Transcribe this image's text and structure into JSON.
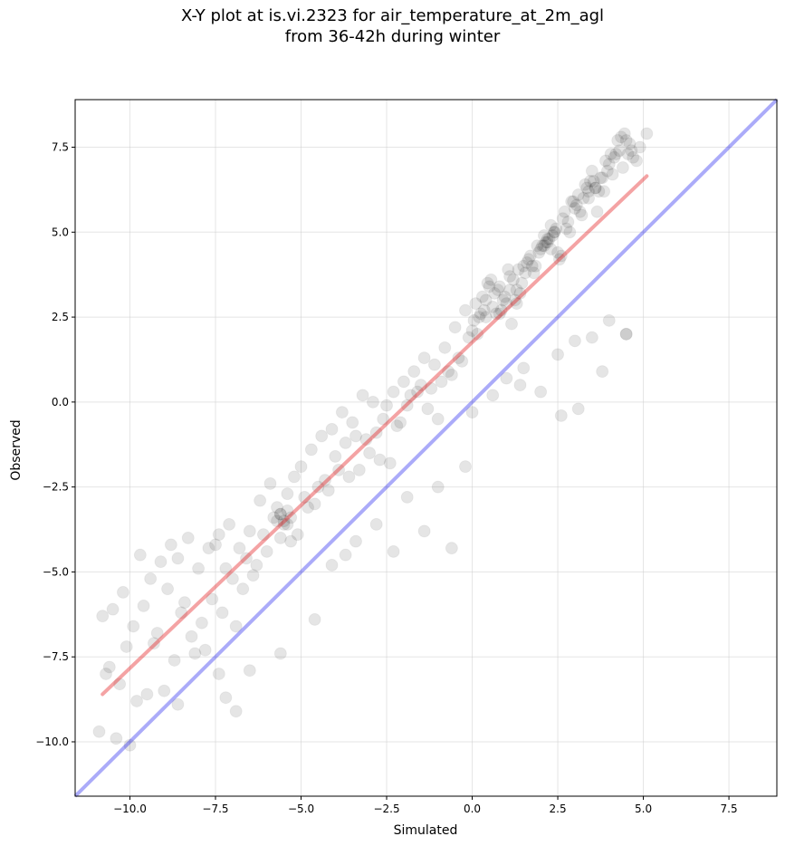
{
  "chart_data": {
    "type": "scatter",
    "title": "X-Y plot at is.vi.2323 for air_temperature_at_2m_agl",
    "subtitle": "from 36-42h during winter",
    "xlabel": "Simulated",
    "ylabel": "Observed",
    "xlim": [
      -11.6,
      8.9
    ],
    "ylim": [
      -11.6,
      8.9
    ],
    "xticks": [
      -10.0,
      -7.5,
      -5.0,
      -2.5,
      0.0,
      2.5,
      5.0,
      7.5
    ],
    "yticks": [
      -10.0,
      -7.5,
      -5.0,
      -2.5,
      0.0,
      2.5,
      5.0,
      7.5
    ],
    "xtick_labels": [
      "−10.0",
      "−7.5",
      "−5.0",
      "−2.5",
      "0.0",
      "2.5",
      "5.0",
      "7.5"
    ],
    "ytick_labels": [
      "−10.0",
      "−7.5",
      "−5.0",
      "−2.5",
      "0.0",
      "2.5",
      "5.0",
      "7.5"
    ],
    "grid": true,
    "colors": {
      "points": "#000000",
      "regression": "#e41a1c",
      "identity": "#0000ee"
    },
    "regression_line": {
      "x": [
        -10.8,
        5.1
      ],
      "y": [
        -8.6,
        6.65
      ]
    },
    "identity_line": {
      "x": [
        -11.6,
        8.9
      ],
      "y": [
        -11.6,
        8.9
      ]
    },
    "points": {
      "x": [
        -10.8,
        -10.5,
        -10.2,
        -10.6,
        -10.1,
        -9.9,
        -9.6,
        -9.4,
        -9.1,
        -8.8,
        -8.6,
        -8.3,
        -8.0,
        -7.7,
        -7.4,
        -7.1,
        -6.8,
        -6.5,
        -6.2,
        -5.9,
        -5.6,
        -5.4,
        -5.2,
        -5.0,
        -4.7,
        -4.4,
        -4.1,
        -3.8,
        -3.5,
        -3.2,
        -2.9,
        -2.6,
        -2.3,
        -2.0,
        -1.7,
        -1.4,
        -1.1,
        -0.8,
        -0.5,
        -0.2,
        0.1,
        0.3,
        0.5,
        0.7,
        0.9,
        1.1,
        1.3,
        1.5,
        1.7,
        1.9,
        2.1,
        2.3,
        2.5,
        2.7,
        2.9,
        3.1,
        3.3,
        3.5,
        3.7,
        3.9,
        4.1,
        4.3,
        4.5,
        4.7,
        4.9,
        5.1,
        -10.7,
        -10.3,
        -9.8,
        -9.3,
        -8.9,
        -8.5,
        -8.1,
        -7.6,
        -7.2,
        -6.7,
        -6.3,
        -5.8,
        -5.5,
        -5.3,
        -4.9,
        -4.5,
        -4.0,
        -3.6,
        -3.1,
        -2.7,
        -2.2,
        -1.8,
        -1.3,
        -0.9,
        -0.4,
        0.0,
        0.2,
        0.4,
        0.6,
        0.8,
        1.0,
        1.2,
        1.4,
        1.6,
        1.8,
        2.0,
        2.2,
        2.4,
        2.6,
        2.8,
        3.0,
        3.2,
        3.4,
        3.6,
        3.8,
        4.0,
        4.2,
        4.4,
        4.6,
        4.8,
        -10.9,
        -10.4,
        -10.0,
        -9.5,
        -9.0,
        -8.7,
        -8.2,
        -7.8,
        -7.3,
        -6.9,
        -6.4,
        -6.0,
        -5.7,
        -5.6,
        -5.1,
        -4.6,
        -4.2,
        -3.7,
        -3.3,
        -2.8,
        -2.4,
        -1.9,
        -1.5,
        -1.0,
        -0.6,
        -0.1,
        0.05,
        0.25,
        0.45,
        0.65,
        0.85,
        1.05,
        1.25,
        1.45,
        1.65,
        1.85,
        2.05,
        2.25,
        2.45,
        2.65,
        2.85,
        3.05,
        3.25,
        3.45,
        3.65,
        3.85,
        4.05,
        4.25,
        4.45,
        4.65,
        -9.7,
        -8.4,
        -7.5,
        -6.6,
        -5.5,
        -4.8,
        -3.9,
        -3.0,
        -2.1,
        -1.2,
        -0.3,
        0.35,
        0.75,
        1.15,
        1.55,
        1.95,
        2.35,
        2.75,
        3.15,
        3.55,
        3.95,
        4.35,
        -9.2,
        -7.9,
        -7.0,
        -6.1,
        -5.4,
        -4.3,
        -3.4,
        -2.5,
        -1.6,
        -0.7,
        0.15,
        0.55,
        0.95,
        1.35,
        1.75,
        2.15,
        2.55,
        2.95,
        3.35,
        3.75,
        4.15,
        4.55,
        -8.6,
        -7.4,
        -6.5,
        -5.6,
        -4.6,
        -3.7,
        -2.8,
        -1.9,
        -1.0,
        0.0,
        0.6,
        1.0,
        1.5,
        2.0,
        2.5,
        3.0,
        3.5,
        4.0,
        4.5,
        -5.3,
        -5.6,
        -5.4,
        -5.7,
        0.4,
        0.8,
        1.3,
        1.1,
        2.2,
        2.1,
        2.4,
        2.3,
        3.6,
        3.4,
        -6.9,
        -7.2,
        -4.1,
        -3.4,
        -2.3,
        -1.4,
        -0.6,
        -0.2,
        1.4,
        2.6,
        3.1,
        3.8,
        4.5
      ],
      "y": [
        -6.3,
        -6.1,
        -5.6,
        -7.8,
        -7.2,
        -6.6,
        -6.0,
        -5.2,
        -4.7,
        -4.2,
        -4.6,
        -4.0,
        -4.9,
        -4.3,
        -3.9,
        -3.6,
        -4.3,
        -3.8,
        -2.9,
        -2.4,
        -3.3,
        -2.7,
        -2.2,
        -1.9,
        -1.4,
        -1.0,
        -0.8,
        -0.3,
        -0.6,
        0.2,
        0.0,
        -0.5,
        0.3,
        0.6,
        0.9,
        1.3,
        1.1,
        1.6,
        2.2,
        2.7,
        2.9,
        3.1,
        3.4,
        2.6,
        3.0,
        3.7,
        3.3,
        4.0,
        4.3,
        4.6,
        4.9,
        5.2,
        4.4,
        5.6,
        5.9,
        6.1,
        6.4,
        6.8,
        6.2,
        7.1,
        6.7,
        7.4,
        7.7,
        7.2,
        7.5,
        7.9,
        -8.0,
        -8.3,
        -8.8,
        -7.1,
        -5.5,
        -6.2,
        -7.4,
        -5.8,
        -4.9,
        -5.5,
        -4.8,
        -3.4,
        -3.6,
        -4.1,
        -2.8,
        -2.5,
        -1.6,
        -2.2,
        -1.1,
        -1.7,
        -0.7,
        0.2,
        -0.2,
        0.6,
        1.3,
        2.1,
        2.5,
        3.0,
        2.8,
        3.4,
        2.9,
        3.6,
        3.2,
        4.1,
        3.8,
        4.5,
        4.7,
        5.0,
        4.3,
        5.3,
        5.7,
        5.5,
        6.0,
        6.3,
        6.6,
        7.0,
        7.3,
        6.9,
        7.6,
        7.1,
        -9.7,
        -9.9,
        -10.1,
        -8.6,
        -8.5,
        -7.6,
        -6.9,
        -7.3,
        -6.2,
        -6.6,
        -5.1,
        -4.4,
        -3.1,
        -4.0,
        -3.9,
        -3.0,
        -2.6,
        -1.2,
        -2.0,
        -0.9,
        -1.8,
        -0.1,
        0.5,
        -0.5,
        0.8,
        1.9,
        2.4,
        2.6,
        3.5,
        3.2,
        2.7,
        3.9,
        3.0,
        3.5,
        4.2,
        4.0,
        4.6,
        4.8,
        5.1,
        5.4,
        5.0,
        5.8,
        6.0,
        6.5,
        5.6,
        6.2,
        7.3,
        7.7,
        7.9,
        7.4,
        -4.5,
        -5.9,
        -4.2,
        -4.6,
        -3.5,
        -3.1,
        -2.0,
        -1.5,
        -0.6,
        0.4,
        1.2,
        2.7,
        3.3,
        2.3,
        3.8,
        4.4,
        4.9,
        5.1,
        5.6,
        6.5,
        6.8,
        7.8,
        -6.8,
        -6.5,
        -5.2,
        -3.9,
        -3.2,
        -2.3,
        -1.0,
        -0.1,
        0.3,
        0.9,
        2.0,
        3.6,
        3.1,
        3.9,
        4.0,
        4.7,
        4.2,
        5.9,
        6.3,
        6.6,
        7.2,
        7.3,
        -8.9,
        -8.0,
        -7.9,
        -7.4,
        -6.4,
        -4.5,
        -3.6,
        -2.8,
        -2.5,
        -0.3,
        0.2,
        0.7,
        1.0,
        0.3,
        1.4,
        1.8,
        1.9,
        2.4,
        2.0,
        -3.4,
        -3.3,
        -3.6,
        -3.5,
        2.5,
        2.6,
        2.9,
        3.3,
        4.8,
        4.6,
        5.0,
        4.5,
        6.3,
        6.2,
        -9.1,
        -8.7,
        -4.8,
        -4.1,
        -4.4,
        -3.8,
        -4.3,
        -1.9,
        0.5,
        -0.4,
        -0.2,
        0.9,
        2.0
      ]
    }
  }
}
